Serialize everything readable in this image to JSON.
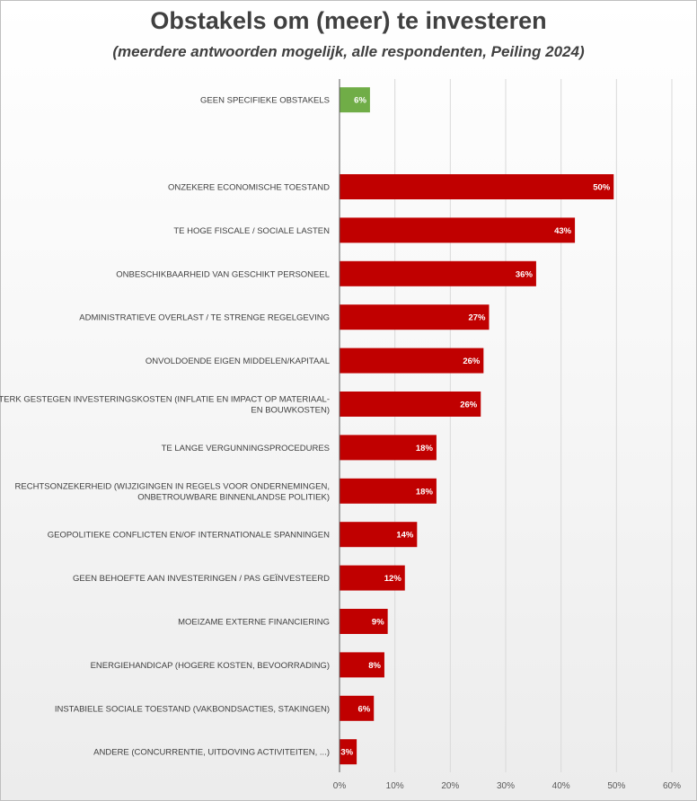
{
  "chart_data": {
    "type": "bar",
    "orientation": "horizontal",
    "title": "Obstakels om (meer) te investeren",
    "subtitle": "(meerdere antwoorden mogelijk, alle respondenten, Peiling 2024)",
    "categories": [
      [
        "GEEN SPECIFIEKE OBSTAKELS"
      ],
      [],
      [
        "ONZEKERE ECONOMISCHE TOESTAND"
      ],
      [
        "TE HOGE FISCALE / SOCIALE LASTEN"
      ],
      [
        "ONBESCHIKBAARHEID VAN GESCHIKT PERSONEEL"
      ],
      [
        "ADMINISTRATIEVE OVERLAST / TE STRENGE REGELGEVING"
      ],
      [
        "ONVOLDOENDE EIGEN MIDDELEN/KAPITAAL"
      ],
      [
        "STERK GESTEGEN INVESTERINGSKOSTEN (INFLATIE EN IMPACT OP MATERIAAL-",
        "EN BOUWKOSTEN)"
      ],
      [
        "TE LANGE VERGUNNINGSPROCEDURES"
      ],
      [
        "RECHTSONZEKERHEID (WIJZIGINGEN IN REGELS VOOR ONDERNEMINGEN,",
        "ONBETROUWBARE BINNENLANDSE POLITIEK)"
      ],
      [
        "GEOPOLITIEKE CONFLICTEN EN/OF INTERNATIONALE SPANNINGEN"
      ],
      [
        "GEEN BEHOEFTE AAN INVESTERINGEN / PAS GEÏNVESTEERD"
      ],
      [
        "MOEIZAME EXTERNE FINANCIERING"
      ],
      [
        "ENERGIEHANDICAP (HOGERE KOSTEN,  BEVOORRADING)"
      ],
      [
        "INSTABIELE SOCIALE TOESTAND (VAKBONDSACTIES, STAKINGEN)"
      ],
      [
        "ANDERE (CONCURRENTIE, UITDOVING ACTIVITEITEN, ...)"
      ]
    ],
    "values": [
      5.5,
      null,
      49.5,
      42.5,
      35.5,
      27,
      26,
      25.5,
      17.5,
      17.5,
      14,
      11.8,
      8.7,
      8.1,
      6.2,
      3.1
    ],
    "value_labels": [
      "6%",
      "",
      "50%",
      "43%",
      "36%",
      "27%",
      "26%",
      "26%",
      "18%",
      "18%",
      "14%",
      "12%",
      "9%",
      "8%",
      "6%",
      "3%"
    ],
    "colors": [
      "#70ad47",
      "",
      "#c00000",
      "#c00000",
      "#c00000",
      "#c00000",
      "#c00000",
      "#c00000",
      "#c00000",
      "#c00000",
      "#c00000",
      "#c00000",
      "#c00000",
      "#c00000",
      "#c00000",
      "#c00000"
    ],
    "xlim": [
      0,
      60
    ],
    "xticks": [
      "0%",
      "10%",
      "20%",
      "30%",
      "40%",
      "50%",
      "60%"
    ],
    "grid": true,
    "legend": false
  }
}
